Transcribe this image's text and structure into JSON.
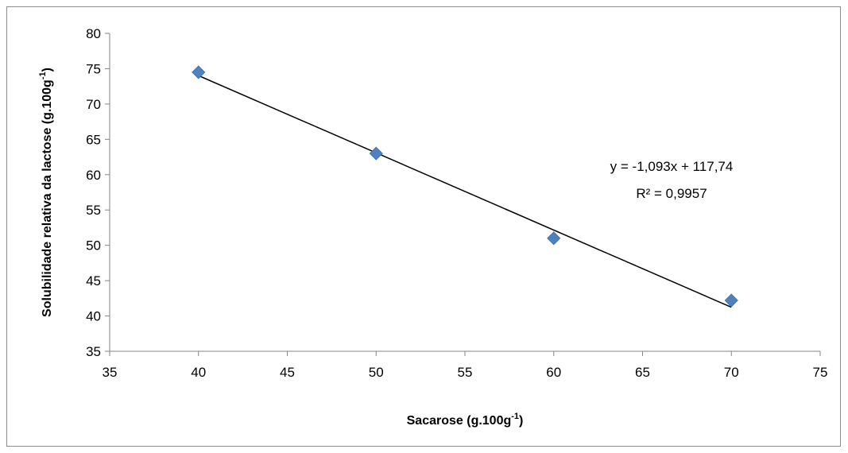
{
  "chart_data": {
    "type": "scatter",
    "title": "",
    "xlabel": "Sacarose (g.100g",
    "xlabel_sup": "-1",
    "xlabel_end": ")",
    "ylabel": "Solubilidade relativa da lactose (g.100g",
    "ylabel_sup": "-1",
    "ylabel_end": ")",
    "xlim": [
      35,
      75
    ],
    "ylim": [
      35,
      80
    ],
    "xticks": [
      "35",
      "40",
      "45",
      "50",
      "55",
      "60",
      "65",
      "70",
      "75"
    ],
    "yticks": [
      "35",
      "40",
      "45",
      "50",
      "55",
      "60",
      "65",
      "70",
      "75",
      "80"
    ],
    "grid": false,
    "series": [
      {
        "x": [
          40,
          50,
          60,
          70
        ],
        "y": [
          74.5,
          63,
          51,
          42.2
        ],
        "marker": "diamond",
        "color": "#4F81BD"
      }
    ],
    "trendline": {
      "slope": -1.093,
      "intercept": 117.74,
      "x_range": [
        40,
        70
      ],
      "color": "#000000"
    },
    "annotations": {
      "equation": "y = -1,093x + 117,74",
      "r_squared": "R² = 0,9957"
    }
  }
}
